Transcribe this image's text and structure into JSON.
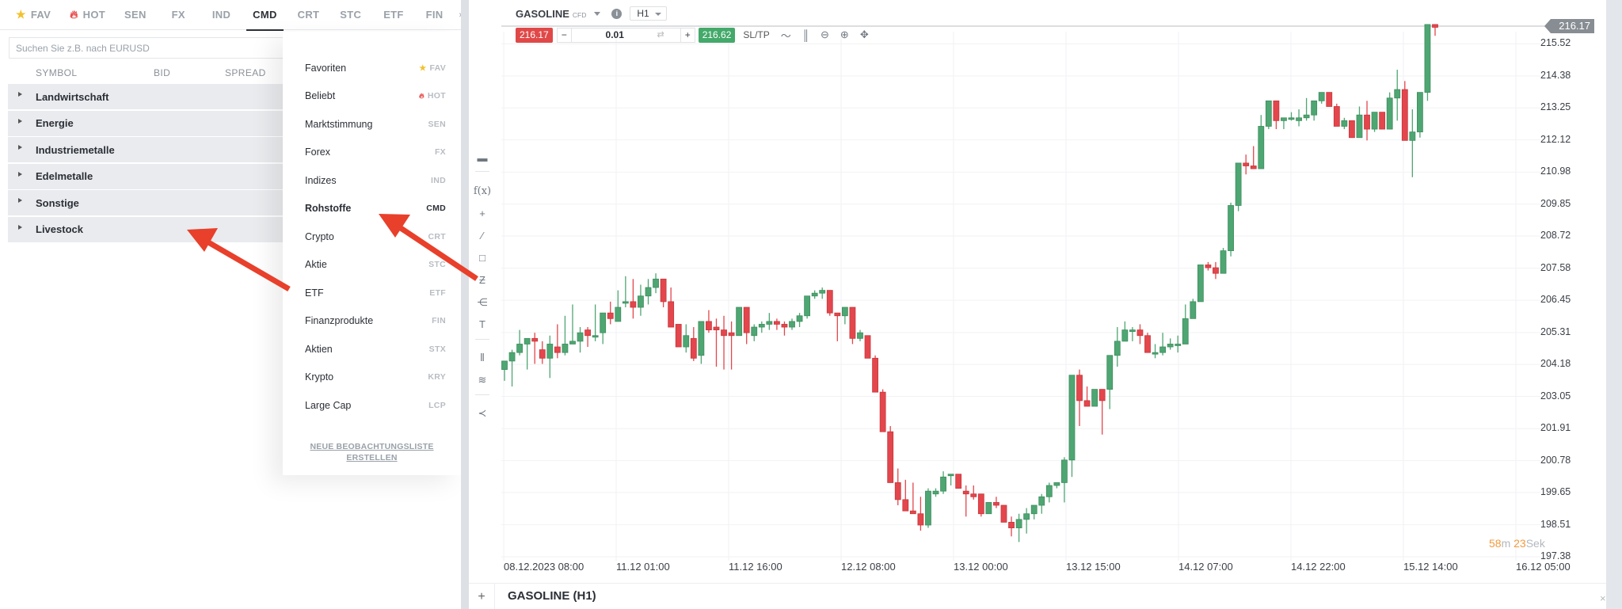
{
  "tabs": [
    {
      "label": "FAV",
      "icon": "star-icon",
      "active": false
    },
    {
      "label": "HOT",
      "icon": "flame-icon",
      "active": false
    },
    {
      "label": "SEN",
      "active": false
    },
    {
      "label": "FX",
      "active": false
    },
    {
      "label": "IND",
      "active": false
    },
    {
      "label": "CMD",
      "active": true
    },
    {
      "label": "CRT",
      "active": false
    },
    {
      "label": "STC",
      "active": false
    },
    {
      "label": "ETF",
      "active": false
    },
    {
      "label": "FIN",
      "active": false
    }
  ],
  "tabs_more": "»",
  "search": {
    "placeholder": "Suchen Sie z.B. nach EURUSD"
  },
  "columns": [
    "SYMBOL",
    "BID",
    "SPREAD"
  ],
  "groups": [
    "Landwirtschaft",
    "Energie",
    "Industriemetalle",
    "Edelmetalle",
    "Sonstige",
    "Livestock"
  ],
  "dropdown": {
    "items": [
      {
        "name": "Favoriten",
        "code": "FAV",
        "icon": "star-icon"
      },
      {
        "name": "Beliebt",
        "code": "HOT",
        "icon": "flame-icon"
      },
      {
        "name": "Marktstimmung",
        "code": "SEN"
      },
      {
        "name": "Forex",
        "code": "FX"
      },
      {
        "name": "Indizes",
        "code": "IND"
      },
      {
        "name": "Rohstoffe",
        "code": "CMD",
        "active": true
      },
      {
        "name": "Crypto",
        "code": "CRT"
      },
      {
        "name": "Aktie",
        "code": "STC"
      },
      {
        "name": "ETF",
        "code": "ETF"
      },
      {
        "name": "Finanzprodukte",
        "code": "FIN"
      },
      {
        "name": "Aktien",
        "code": "STX"
      },
      {
        "name": "Krypto",
        "code": "KRY"
      },
      {
        "name": "Large Cap",
        "code": "LCP"
      }
    ],
    "new_list_line1": "NEUE BEOBACHTUNGSLISTE",
    "new_list_line2": "ERSTELLEN"
  },
  "chart_header": {
    "symbol": "GASOLINE",
    "type": "CFD",
    "timeframe": "H1",
    "bid": "216.17",
    "quantity": "0.01",
    "ask": "216.62",
    "sltp": "SL/TP"
  },
  "current_price": "216.17",
  "countdown": {
    "min": "58",
    "min_unit": "m",
    "sec": "23",
    "sec_unit": "Sek"
  },
  "pane_title": "GASOLINE (H1)",
  "colors": {
    "up": "#4ea672",
    "down": "#e3464c",
    "accent_orange": "#f29a3d",
    "bid_red": "#e04848",
    "ask_green": "#44a96a"
  },
  "chart_data": {
    "type": "candlestick",
    "title": "GASOLINE (H1)",
    "xlabel": "",
    "ylabel": "",
    "ylim": [
      197.38,
      216.17
    ],
    "y_ticks": [
      215.52,
      214.38,
      213.25,
      212.12,
      210.98,
      209.85,
      208.72,
      207.58,
      206.45,
      205.31,
      204.18,
      203.05,
      201.91,
      200.78,
      199.65,
      198.51,
      197.38
    ],
    "x_ticks": [
      "08.12.2023 08:00",
      "11.12 01:00",
      "11.12 16:00",
      "12.12 08:00",
      "13.12 00:00",
      "13.12 15:00",
      "14.12 07:00",
      "14.12 22:00",
      "15.12 14:00",
      "16.12 05:00"
    ],
    "grid": true,
    "candles": [
      [
        204.0,
        204.3,
        203.6,
        204.3
      ],
      [
        204.3,
        204.7,
        203.4,
        204.6
      ],
      [
        204.6,
        205.4,
        204.5,
        204.9
      ],
      [
        204.9,
        205.1,
        204.0,
        205.1
      ],
      [
        205.1,
        205.3,
        204.2,
        205.0
      ],
      [
        204.7,
        205.0,
        204.2,
        204.4
      ],
      [
        204.4,
        205.2,
        203.7,
        204.9
      ],
      [
        204.8,
        205.6,
        204.4,
        204.6
      ],
      [
        204.6,
        205.9,
        204.5,
        204.9
      ],
      [
        204.9,
        206.3,
        204.9,
        205.0
      ],
      [
        205.0,
        205.5,
        204.6,
        205.3
      ],
      [
        205.4,
        205.5,
        204.8,
        205.2
      ],
      [
        205.2,
        206.3,
        205.0,
        205.2
      ],
      [
        205.3,
        205.6,
        204.9,
        206.0
      ],
      [
        206.0,
        206.4,
        205.6,
        205.8
      ],
      [
        205.7,
        206.8,
        205.7,
        206.2
      ],
      [
        206.4,
        207.3,
        206.2,
        206.4
      ],
      [
        206.4,
        207.2,
        205.8,
        206.2
      ],
      [
        206.2,
        207.0,
        205.9,
        206.6
      ],
      [
        206.6,
        207.2,
        206.3,
        206.9
      ],
      [
        206.9,
        207.4,
        206.7,
        207.2
      ],
      [
        207.2,
        207.0,
        206.2,
        206.4
      ],
      [
        206.4,
        206.9,
        205.6,
        205.5
      ],
      [
        205.6,
        205.6,
        204.8,
        204.8
      ],
      [
        204.8,
        205.6,
        204.6,
        205.2
      ],
      [
        205.1,
        205.5,
        204.3,
        204.4
      ],
      [
        204.5,
        205.5,
        204.2,
        205.7
      ],
      [
        205.7,
        206.1,
        205.3,
        205.4
      ],
      [
        205.5,
        205.8,
        204.1,
        205.4
      ],
      [
        205.4,
        205.9,
        204.0,
        205.2
      ],
      [
        205.3,
        205.7,
        204.0,
        205.2
      ],
      [
        205.2,
        206.2,
        205.2,
        206.2
      ],
      [
        206.2,
        206.2,
        204.9,
        205.3
      ],
      [
        205.2,
        205.6,
        205.0,
        205.5
      ],
      [
        205.5,
        205.7,
        205.3,
        205.6
      ],
      [
        205.6,
        206.0,
        205.4,
        205.7
      ],
      [
        205.7,
        205.8,
        205.4,
        205.6
      ],
      [
        205.6,
        205.7,
        205.2,
        205.5
      ],
      [
        205.5,
        205.8,
        205.4,
        205.7
      ],
      [
        205.7,
        206.0,
        205.5,
        205.9
      ],
      [
        205.9,
        206.6,
        205.8,
        206.6
      ],
      [
        206.6,
        206.8,
        206.5,
        206.7
      ],
      [
        206.7,
        206.9,
        206.5,
        206.8
      ],
      [
        206.8,
        206.8,
        205.9,
        206.0
      ],
      [
        206.0,
        206.0,
        205.0,
        205.9
      ],
      [
        205.9,
        206.2,
        205.6,
        206.2
      ],
      [
        206.2,
        206.1,
        204.9,
        205.1
      ],
      [
        205.1,
        205.4,
        205.0,
        205.3
      ],
      [
        205.2,
        205.2,
        204.5,
        204.4
      ],
      [
        204.4,
        204.5,
        203.6,
        203.2
      ],
      [
        203.2,
        203.3,
        201.8,
        201.8
      ],
      [
        201.8,
        202.0,
        200.8,
        200.0
      ],
      [
        200.0,
        200.5,
        199.2,
        199.4
      ],
      [
        199.4,
        200.1,
        199.2,
        199.0
      ],
      [
        199.0,
        200.0,
        199.0,
        198.9
      ],
      [
        198.9,
        199.5,
        198.3,
        198.5
      ],
      [
        198.5,
        199.8,
        198.4,
        199.7
      ],
      [
        199.6,
        199.8,
        199.5,
        199.7
      ],
      [
        199.7,
        200.4,
        199.6,
        200.2
      ],
      [
        200.3,
        200.3,
        199.9,
        200.3
      ],
      [
        200.3,
        200.3,
        199.8,
        199.8
      ],
      [
        199.7,
        199.9,
        198.8,
        199.6
      ],
      [
        199.6,
        199.9,
        199.4,
        199.5
      ],
      [
        199.6,
        199.6,
        198.8,
        198.9
      ],
      [
        198.9,
        199.3,
        198.9,
        199.3
      ],
      [
        199.3,
        199.5,
        199.1,
        199.2
      ],
      [
        199.2,
        199.2,
        198.6,
        198.6
      ],
      [
        198.6,
        198.8,
        198.1,
        198.4
      ],
      [
        198.4,
        198.9,
        197.9,
        198.7
      ],
      [
        198.7,
        199.1,
        198.2,
        198.9
      ],
      [
        198.9,
        199.2,
        198.7,
        199.2
      ],
      [
        199.2,
        199.6,
        198.9,
        199.5
      ],
      [
        199.5,
        200.0,
        199.3,
        199.9
      ],
      [
        199.9,
        199.9,
        199.8,
        200.0
      ],
      [
        200.0,
        200.9,
        199.3,
        200.8
      ],
      [
        200.8,
        203.3,
        200.2,
        203.8
      ],
      [
        203.8,
        204.0,
        202.0,
        202.9
      ],
      [
        202.9,
        203.4,
        202.9,
        202.7
      ],
      [
        202.7,
        203.1,
        202.8,
        203.3
      ],
      [
        203.3,
        203.2,
        201.7,
        202.9
      ],
      [
        203.3,
        204.3,
        202.6,
        204.5
      ],
      [
        204.5,
        205.5,
        204.1,
        205.0
      ],
      [
        205.0,
        205.7,
        205.0,
        205.4
      ],
      [
        205.4,
        205.5,
        205.0,
        205.4
      ],
      [
        205.4,
        205.6,
        204.9,
        205.2
      ],
      [
        205.2,
        205.3,
        204.7,
        204.6
      ],
      [
        204.6,
        204.9,
        204.4,
        204.6
      ],
      [
        204.6,
        205.3,
        204.5,
        204.8
      ],
      [
        204.8,
        205.1,
        204.7,
        204.9
      ],
      [
        204.9,
        205.2,
        204.6,
        204.9
      ],
      [
        204.9,
        206.3,
        204.9,
        205.8
      ],
      [
        205.8,
        206.5,
        205.8,
        206.4
      ],
      [
        206.4,
        207.2,
        206.5,
        207.7
      ],
      [
        207.7,
        207.8,
        207.5,
        207.6
      ],
      [
        207.6,
        207.8,
        207.2,
        207.4
      ],
      [
        207.4,
        208.3,
        207.6,
        208.2
      ],
      [
        208.2,
        209.9,
        208.0,
        209.8
      ],
      [
        209.8,
        211.2,
        209.6,
        211.3
      ],
      [
        211.3,
        211.6,
        210.9,
        211.2
      ],
      [
        211.2,
        211.9,
        211.1,
        211.1
      ],
      [
        211.1,
        213.0,
        211.1,
        212.6
      ],
      [
        212.6,
        213.5,
        212.5,
        213.5
      ],
      [
        213.5,
        213.5,
        212.5,
        212.8
      ],
      [
        212.8,
        212.9,
        212.5,
        212.9
      ],
      [
        212.9,
        213.1,
        212.8,
        212.9
      ],
      [
        212.8,
        213.2,
        212.6,
        212.9
      ],
      [
        212.9,
        213.6,
        212.8,
        213.0
      ],
      [
        213.0,
        213.5,
        212.8,
        213.5
      ],
      [
        213.5,
        213.8,
        213.4,
        213.8
      ],
      [
        213.8,
        213.8,
        213.3,
        213.3
      ],
      [
        213.3,
        213.4,
        212.7,
        212.6
      ],
      [
        212.6,
        212.9,
        212.5,
        212.8
      ],
      [
        212.8,
        212.7,
        212.3,
        212.2
      ],
      [
        212.2,
        213.3,
        212.4,
        213.0
      ],
      [
        213.0,
        213.5,
        212.1,
        212.5
      ],
      [
        212.5,
        213.1,
        212.4,
        213.1
      ],
      [
        213.1,
        213.1,
        212.5,
        212.5
      ],
      [
        212.5,
        213.8,
        212.5,
        213.6
      ],
      [
        213.6,
        214.6,
        212.8,
        213.9
      ],
      [
        213.9,
        214.2,
        212.2,
        212.1
      ],
      [
        212.1,
        213.2,
        210.8,
        212.4
      ],
      [
        212.4,
        213.6,
        212.2,
        213.8
      ],
      [
        213.8,
        216.2,
        213.5,
        216.2
      ],
      [
        216.2,
        216.2,
        215.8,
        216.1
      ]
    ]
  }
}
